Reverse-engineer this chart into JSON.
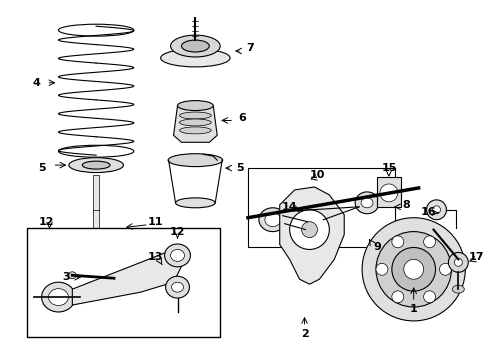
{
  "background_color": "#ffffff",
  "fig_width": 4.9,
  "fig_height": 3.6,
  "dpi": 100,
  "line_color": "#000000",
  "part_color": "#cccccc",
  "label_fontsize": 7,
  "diagram_lw": 0.8
}
